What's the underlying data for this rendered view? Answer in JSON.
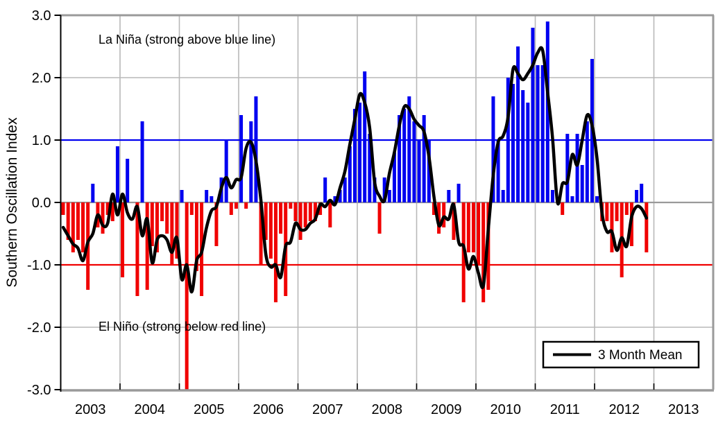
{
  "chart_data": {
    "type": "bar+line",
    "title": "",
    "ylabel": "Southern Oscillation Index",
    "xlabel": "",
    "ylim": [
      -3.0,
      3.0
    ],
    "ytick_labels": [
      "3.0",
      "2.0",
      "1.0",
      "0.0",
      "-1.0",
      "-2.0",
      "-3.0"
    ],
    "yticks": [
      3.0,
      2.0,
      1.0,
      0.0,
      -1.0,
      -2.0,
      -3.0
    ],
    "xtick_labels": [
      "2003",
      "2004",
      "2005",
      "2006",
      "2007",
      "2008",
      "2009",
      "2010",
      "2011",
      "2012",
      "2013"
    ],
    "x_range": [
      "2003-01",
      "2012-11"
    ],
    "grid": true,
    "annotations": {
      "la_nina": "La Niña (strong above blue line)",
      "el_nino": "El Niño (strong below red line)"
    },
    "legend": {
      "label": "3 Month Mean",
      "position": "bottom-right"
    },
    "threshold_lines": [
      {
        "value": 1.0,
        "color": "#0000f0",
        "meaning": "La Niña threshold (blue line)"
      },
      {
        "value": -1.0,
        "color": "#f00000",
        "meaning": "El Niño threshold (red line)"
      }
    ],
    "colors": {
      "positive_bar": "#0000f0",
      "negative_bar": "#f00000",
      "mean_line": "#000000",
      "gridline": "#b8b8b8",
      "plot_border": "#9a9a9a",
      "zero_line": "#9a9a9a"
    },
    "series": [
      {
        "name": "Monthly SOI",
        "unit": "index",
        "years": [
          {
            "year": 2003,
            "values": [
              -0.2,
              -0.6,
              -0.8,
              -0.6,
              -0.8,
              -1.4,
              0.3,
              -0.4,
              -0.5,
              -0.2,
              -0.3,
              0.9
            ]
          },
          {
            "year": 2004,
            "values": [
              -1.2,
              0.7,
              0.0,
              -1.5,
              1.3,
              -1.4,
              -0.7,
              -0.8,
              -0.3,
              -0.5,
              -1.0,
              -0.9
            ]
          },
          {
            "year": 2005,
            "values": [
              0.2,
              -3.0,
              -0.2,
              -1.1,
              -1.5,
              0.2,
              0.1,
              -0.7,
              0.4,
              1.0,
              -0.2,
              -0.1
            ]
          },
          {
            "year": 2006,
            "values": [
              1.4,
              -0.1,
              1.3,
              1.7,
              -1.0,
              -0.6,
              -0.9,
              -1.6,
              -0.5,
              -1.5,
              -0.1,
              -0.3
            ]
          },
          {
            "year": 2007,
            "values": [
              -0.6,
              -0.4,
              -0.3,
              -0.3,
              -0.2,
              0.4,
              -0.4,
              0.1,
              0.2,
              0.4,
              0.9,
              1.5
            ]
          },
          {
            "year": 2008,
            "values": [
              1.6,
              2.1,
              1.1,
              0.4,
              -0.5,
              0.4,
              0.2,
              0.8,
              1.4,
              1.5,
              1.7,
              1.3
            ]
          },
          {
            "year": 2009,
            "values": [
              1.0,
              1.4,
              1.0,
              -0.2,
              -0.5,
              -0.4,
              0.2,
              -0.6,
              0.3,
              -1.6,
              -0.8,
              -0.8
            ]
          },
          {
            "year": 2010,
            "values": [
              -1.0,
              -1.6,
              -1.4,
              1.7,
              1.0,
              0.2,
              2.0,
              1.9,
              2.5,
              1.8,
              1.6,
              2.8
            ]
          },
          {
            "year": 2011,
            "values": [
              2.2,
              2.2,
              2.9,
              0.2,
              0.0,
              -0.2,
              1.1,
              0.1,
              1.1,
              0.6,
              1.3,
              2.3
            ]
          },
          {
            "year": 2012,
            "values": [
              0.1,
              -0.3,
              -0.3,
              -0.8,
              -0.3,
              -1.2,
              -0.2,
              -0.7,
              0.2,
              0.3,
              -0.8,
              null
            ]
          }
        ]
      },
      {
        "name": "3 Month Mean",
        "derivation": "centered 3-month rolling mean of Monthly SOI"
      }
    ]
  }
}
